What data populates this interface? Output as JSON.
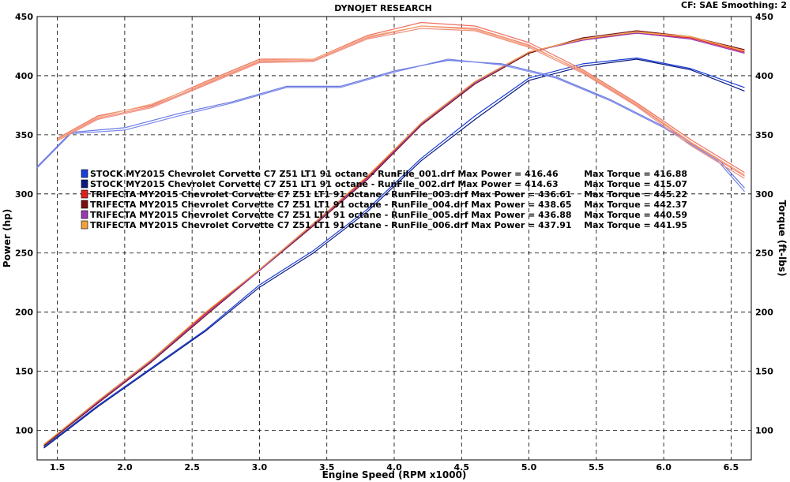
{
  "header": {
    "title": "DYNOJET RESEARCH",
    "cf_text": "CF: SAE  Smoothing: 2"
  },
  "chart_data": {
    "type": "line",
    "title": "DYNOJET RESEARCH",
    "xlabel": "Engine Speed (RPM x1000)",
    "ylabel": "Power (hp)",
    "y2label": "Torque (ft-lbs)",
    "xlim": [
      1.35,
      6.65
    ],
    "ylim": [
      75,
      450
    ],
    "y2lim": [
      75,
      450
    ],
    "xticks": [
      "1.5",
      "2.0",
      "2.5",
      "3.0",
      "3.5",
      "4.0",
      "4.5",
      "5.0",
      "5.5",
      "6.0",
      "6.5"
    ],
    "yticks": [
      "100",
      "150",
      "200",
      "250",
      "300",
      "350",
      "400",
      "450"
    ],
    "grid": true,
    "legend_position": "center-left",
    "legend": [
      {
        "text": "STOCK MY2015 Chevrolet Corvette C7 Z51 LT1 91 octane - RunFile_001.drf Max Power = 416.46",
        "torque": "Max Torque = 416.88",
        "color": "#1a3fd8"
      },
      {
        "text": "STOCK MY2015 Chevrolet Corvette C7 Z51 LT1 91 octane - RunFile_002.drf Max Power = 414.63",
        "torque": "Max Torque = 415.07",
        "color": "#0b1a80"
      },
      {
        "text": "TRIFECTA MY2015 Chevrolet Corvette C7 Z51 LT1 91 octane - RunFile_003.drf Max Power = 436.61",
        "torque": "Max Torque = 445.22",
        "color": "#e02020"
      },
      {
        "text": "TRIFECTA MY2015 Chevrolet Corvette C7 Z51 LT1 91 octane - RunFile_004.drf Max Power = 438.65",
        "torque": "Max Torque = 442.37",
        "color": "#7a1010"
      },
      {
        "text": "TRIFECTA MY2015 Chevrolet Corvette C7 Z51 LT1 91 octane - RunFile_005.drf Max Power = 436.88",
        "torque": "Max Torque = 440.59",
        "color": "#9a3ab0"
      },
      {
        "text": "TRIFECTA MY2015 Chevrolet Corvette C7 Z51 LT1 91 octane - RunFile_006.drf Max Power = 437.91",
        "torque": "Max Torque = 441.95",
        "color": "#f0a040"
      }
    ],
    "series": [
      {
        "kind": "power",
        "color": "#1a3fd8",
        "x": [
          1.4,
          1.8,
          2.2,
          2.6,
          3.0,
          3.4,
          3.8,
          4.2,
          4.6,
          5.0,
          5.4,
          5.8,
          6.2,
          6.6
        ],
        "y": [
          86,
          121,
          153,
          185,
          223,
          252,
          287,
          330,
          366,
          398,
          410,
          415,
          406,
          390
        ]
      },
      {
        "kind": "power",
        "color": "#0b1a80",
        "x": [
          1.4,
          1.8,
          2.2,
          2.6,
          3.0,
          3.4,
          3.8,
          4.2,
          4.6,
          5.0,
          5.4,
          5.8,
          6.2,
          6.6
        ],
        "y": [
          85,
          120,
          152,
          184,
          221,
          250,
          285,
          328,
          363,
          396,
          408,
          414,
          405,
          387
        ]
      },
      {
        "kind": "power",
        "color": "#e02020",
        "x": [
          1.4,
          1.8,
          2.2,
          2.6,
          3.0,
          3.4,
          3.8,
          4.2,
          4.6,
          5.0,
          5.4,
          5.8,
          6.2,
          6.6
        ],
        "y": [
          88,
          124,
          160,
          199,
          236,
          275,
          314,
          360,
          395,
          420,
          431,
          436,
          432,
          420
        ]
      },
      {
        "kind": "power",
        "color": "#7a1010",
        "x": [
          1.4,
          1.8,
          2.2,
          2.6,
          3.0,
          3.4,
          3.8,
          4.2,
          4.6,
          5.0,
          5.4,
          5.8,
          6.2,
          6.6
        ],
        "y": [
          87,
          123,
          158,
          197,
          235,
          273,
          312,
          358,
          393,
          419,
          432,
          438,
          433,
          422
        ]
      },
      {
        "kind": "power",
        "color": "#9a3ab0",
        "x": [
          1.4,
          1.8,
          2.2,
          2.6,
          3.0,
          3.4,
          3.8,
          4.2,
          4.6,
          5.0,
          5.4,
          5.8,
          6.2,
          6.6
        ],
        "y": [
          88,
          124,
          159,
          198,
          235,
          274,
          313,
          359,
          394,
          420,
          430,
          436,
          431,
          419
        ]
      },
      {
        "kind": "power",
        "color": "#f0a040",
        "x": [
          1.4,
          1.8,
          2.2,
          2.6,
          3.0,
          3.4,
          3.8,
          4.2,
          4.6,
          5.0,
          5.4,
          5.8,
          6.2,
          6.6
        ],
        "y": [
          88,
          125,
          160,
          200,
          236,
          275,
          315,
          360,
          395,
          420,
          431,
          437,
          433,
          421
        ]
      },
      {
        "kind": "torque",
        "color": "#6a7ae0",
        "x": [
          1.35,
          1.6,
          2.0,
          2.4,
          2.8,
          3.2,
          3.6,
          4.0,
          4.4,
          4.8,
          5.2,
          5.6,
          6.0,
          6.4,
          6.6
        ],
        "y": [
          323,
          352,
          356,
          368,
          378,
          391,
          391,
          404,
          413,
          410,
          399,
          380,
          357,
          330,
          305
        ]
      },
      {
        "kind": "torque",
        "color": "#7a86e8",
        "x": [
          1.35,
          1.6,
          2.0,
          2.4,
          2.8,
          3.2,
          3.6,
          4.0,
          4.4,
          4.8,
          5.2,
          5.6,
          6.0,
          6.4,
          6.6
        ],
        "y": [
          322,
          351,
          354,
          366,
          377,
          390,
          390,
          403,
          414,
          409,
          398,
          379,
          356,
          328,
          302
        ]
      },
      {
        "kind": "torque",
        "color": "#ee7060",
        "x": [
          1.5,
          1.8,
          2.2,
          2.6,
          3.0,
          3.4,
          3.8,
          4.2,
          4.6,
          5.0,
          5.4,
          5.8,
          6.2,
          6.6
        ],
        "y": [
          347,
          366,
          375,
          395,
          414,
          414,
          434,
          445,
          442,
          428,
          405,
          377,
          346,
          318
        ]
      },
      {
        "kind": "torque",
        "color": "#f08070",
        "x": [
          1.5,
          1.8,
          2.2,
          2.6,
          3.0,
          3.4,
          3.8,
          4.2,
          4.6,
          5.0,
          5.4,
          5.8,
          6.2,
          6.6
        ],
        "y": [
          346,
          364,
          374,
          393,
          412,
          413,
          432,
          442,
          440,
          426,
          403,
          375,
          343,
          315
        ]
      },
      {
        "kind": "torque",
        "color": "#f09080",
        "x": [
          1.5,
          1.8,
          2.2,
          2.6,
          3.0,
          3.4,
          3.8,
          4.2,
          4.6,
          5.0,
          5.4,
          5.8,
          6.2,
          6.6
        ],
        "y": [
          345,
          363,
          373,
          392,
          411,
          412,
          431,
          440,
          438,
          424,
          402,
          374,
          341,
          313
        ]
      },
      {
        "kind": "torque",
        "color": "#f4a878",
        "x": [
          1.5,
          1.8,
          2.2,
          2.6,
          3.0,
          3.4,
          3.8,
          4.2,
          4.6,
          5.0,
          5.4,
          5.8,
          6.2,
          6.6
        ],
        "y": [
          346,
          365,
          376,
          394,
          413,
          414,
          433,
          442,
          439,
          425,
          404,
          376,
          344,
          316
        ]
      }
    ]
  }
}
